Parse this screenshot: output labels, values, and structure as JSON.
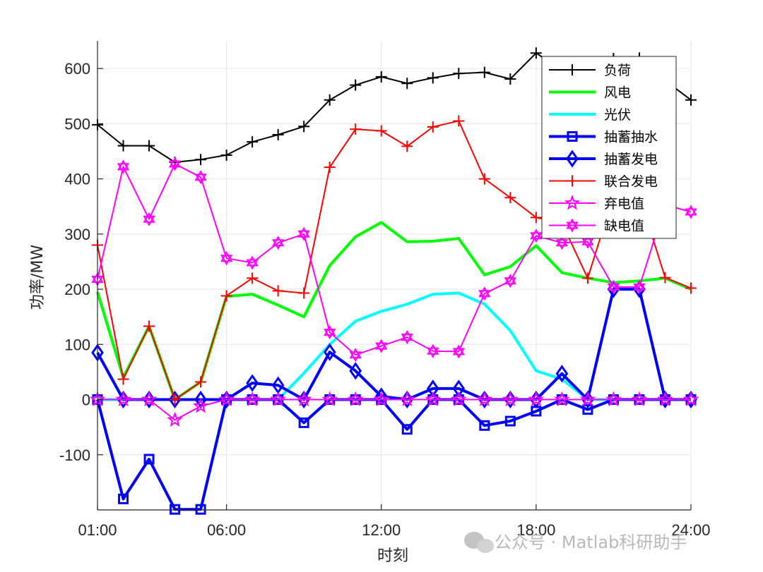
{
  "chart_data": {
    "type": "line",
    "xlabel": "时刻",
    "ylabel": "功率/MW",
    "x_hours": [
      1,
      2,
      3,
      4,
      5,
      6,
      7,
      8,
      9,
      10,
      11,
      12,
      13,
      14,
      15,
      16,
      17,
      18,
      19,
      20,
      21,
      22,
      23,
      24
    ],
    "xticks": [
      {
        "hour": 1,
        "label": "01:00"
      },
      {
        "hour": 6,
        "label": "06:00"
      },
      {
        "hour": 12,
        "label": "12:00"
      },
      {
        "hour": 18,
        "label": "18:00"
      },
      {
        "hour": 24,
        "label": "24:00"
      }
    ],
    "xlim": [
      1,
      24
    ],
    "ylim": [
      -200,
      650
    ],
    "yticks": [
      -100,
      0,
      100,
      200,
      300,
      400,
      500,
      600
    ],
    "ytick_labels": [
      "-100",
      "0",
      "100",
      "200",
      "300",
      "400",
      "500",
      "600"
    ],
    "grid": true,
    "legend_position": "top-right",
    "series": [
      {
        "name": "负荷",
        "color": "#000000",
        "width": 2,
        "marker": "plus",
        "values": [
          498,
          460,
          460,
          430,
          435,
          443,
          467,
          480,
          495,
          543,
          570,
          585,
          573,
          583,
          591,
          593,
          581,
          628,
          597,
          586,
          618,
          619,
          578,
          543
        ]
      },
      {
        "name": "风电",
        "color": "#00ff00",
        "width": 4,
        "marker": "none",
        "values": [
          195,
          40,
          133,
          0,
          32,
          187,
          191,
          171,
          150,
          243,
          295,
          321,
          286,
          287,
          292,
          226,
          241,
          279,
          230,
          220,
          212,
          215,
          220,
          200
        ]
      },
      {
        "name": "光伏",
        "color": "#00ffff",
        "width": 4,
        "marker": "none",
        "values": [
          0,
          0,
          0,
          0,
          0,
          0,
          0,
          0,
          48,
          100,
          142,
          160,
          173,
          191,
          193,
          173,
          125,
          52,
          37,
          0,
          0,
          0,
          0,
          0
        ]
      },
      {
        "name": "抽蓄抽水",
        "color": "#0000ff",
        "width": 4,
        "marker": "square",
        "values": [
          0,
          -180,
          -108,
          -199,
          -199,
          0,
          0,
          0,
          -42,
          0,
          0,
          0,
          -54,
          0,
          0,
          -47,
          -39,
          -21,
          0,
          -18,
          0,
          0,
          0,
          0
        ]
      },
      {
        "name": "抽蓄发电",
        "color": "#0000ff",
        "width": 4,
        "marker": "diamond",
        "values": [
          85,
          0,
          0,
          0,
          0,
          0,
          30,
          26,
          0,
          86,
          52,
          6,
          0,
          20,
          20,
          0,
          0,
          0,
          47,
          0,
          200,
          200,
          0,
          0
        ]
      },
      {
        "name": "联合发电",
        "color": "#ff0000",
        "width": 2,
        "marker": "plus",
        "values": [
          280,
          37,
          133,
          0,
          32,
          188,
          220,
          197,
          193,
          421,
          490,
          487,
          459,
          494,
          505,
          400,
          366,
          330,
          320,
          220,
          370,
          370,
          221,
          202
        ]
      },
      {
        "name": "弃电值",
        "color": "#ff00ff",
        "width": 2,
        "marker": "star",
        "values": [
          0,
          0,
          0,
          -37,
          -12,
          0,
          0,
          0,
          0,
          0,
          0,
          0,
          0,
          0,
          0,
          0,
          0,
          0,
          0,
          0,
          0,
          0,
          0,
          0
        ]
      },
      {
        "name": "缺电值",
        "color": "#ff00ff",
        "width": 2,
        "marker": "hexagram",
        "values": [
          218,
          422,
          327,
          427,
          403,
          256,
          248,
          284,
          300,
          122,
          81,
          97,
          113,
          88,
          87,
          192,
          215,
          297,
          284,
          286,
          204,
          204,
          353,
          340
        ]
      }
    ]
  },
  "watermark": "公众号 · Matlab科研助手"
}
